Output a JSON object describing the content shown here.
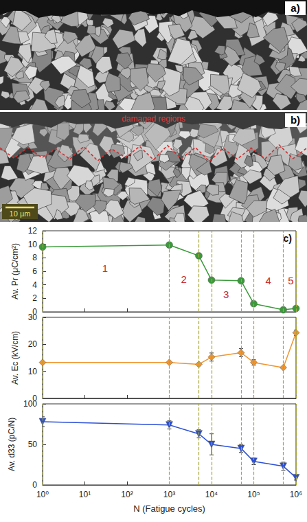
{
  "images": [
    {
      "label": "a)"
    },
    {
      "label": "b)",
      "annotation": "damaged regions",
      "scale_bar": "10 µm"
    }
  ],
  "chart_data": {
    "type": "line",
    "label": "c)",
    "log": "x",
    "grid": false,
    "x_label": "N (Fatigue cycles)",
    "x": [
      1,
      1000,
      5000,
      10000,
      50000,
      100000,
      500000,
      1000000
    ],
    "xlim": [
      1,
      1000000
    ],
    "xticks": [
      {
        "value": 1,
        "label": "10⁰"
      },
      {
        "value": 10,
        "label": "10¹"
      },
      {
        "value": 100,
        "label": "10²"
      },
      {
        "value": 1000,
        "label": "10³"
      },
      {
        "value": 10000,
        "label": "10⁴"
      },
      {
        "value": 100000,
        "label": "10⁵"
      },
      {
        "value": 1000000,
        "label": "10⁶"
      }
    ],
    "boundaries": [
      1,
      1000,
      5000,
      10000,
      50000,
      100000,
      500000,
      1000000
    ],
    "annotations": [
      {
        "text": "1",
        "x": 30,
        "y": 6.5
      },
      {
        "text": "2",
        "x": 2200,
        "y": 4.8
      },
      {
        "text": "3",
        "x": 22000,
        "y": 2.6
      },
      {
        "text": "4",
        "x": 220000,
        "y": 4.6
      },
      {
        "text": "5",
        "x": 750000,
        "y": 4.6
      }
    ],
    "series": [
      {
        "y_label": "Av. Pr (μC/cm²)",
        "color": "#3a9a3a",
        "marker": "circle",
        "values": [
          9.6,
          9.9,
          8.3,
          4.7,
          4.6,
          1.2,
          0.3,
          0.5
        ],
        "ylim": [
          0,
          12
        ],
        "yticks": [
          0,
          2,
          4,
          6,
          8,
          10,
          12
        ]
      },
      {
        "y_label": "Av. Ec (kV/cm)",
        "color": "#f0952e",
        "marker": "diamond",
        "values": [
          13.3,
          13.3,
          12.6,
          15.3,
          16.9,
          13.3,
          11.4,
          24.3
        ],
        "errors": [
          0,
          0,
          0,
          1.5,
          1.5,
          1,
          0,
          1
        ],
        "ylim": [
          0,
          30
        ],
        "yticks": [
          0,
          10,
          20,
          30
        ]
      },
      {
        "y_label": "Av. d33 (pC/N)",
        "color": "#2a4fd6",
        "marker": "triangle_down",
        "values": [
          78,
          74,
          63,
          50,
          45,
          29,
          23,
          9
        ],
        "errors": [
          6,
          5,
          5,
          13,
          5,
          4,
          5,
          3
        ],
        "ylim": [
          0,
          100
        ],
        "yticks": [
          0,
          50,
          100
        ]
      }
    ]
  }
}
